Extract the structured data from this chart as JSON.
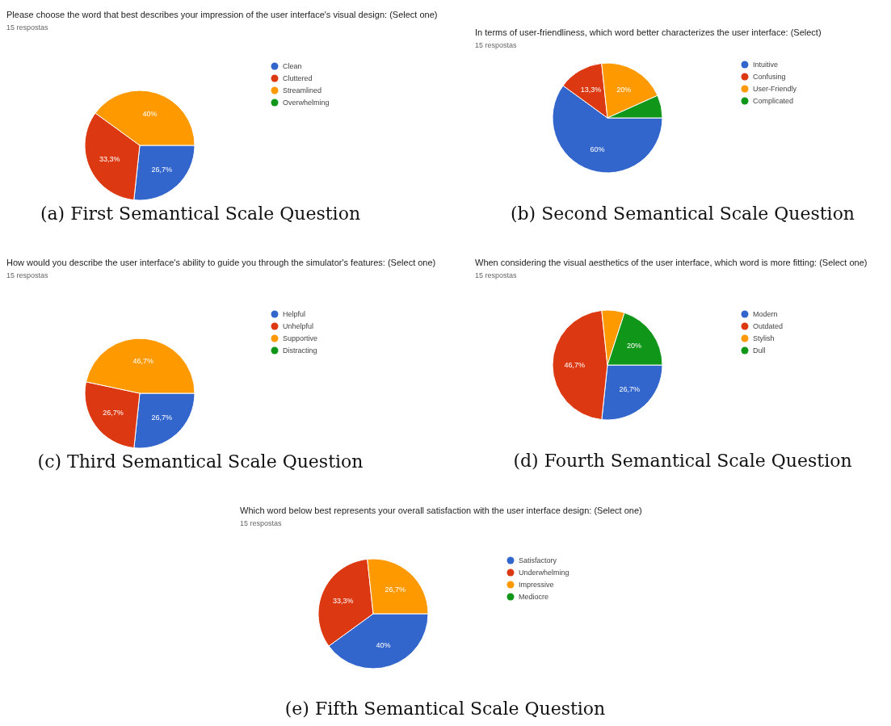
{
  "chart_data": [
    {
      "type": "pie",
      "title": "Please choose the word that best describes your impression of the user interface's visual design: (Select one)",
      "subtitle": "15 respostas",
      "categories": [
        "Clean",
        "Cluttered",
        "Streamlined",
        "Overwhelming"
      ],
      "values": [
        26.7,
        33.3,
        40,
        0
      ],
      "colors": [
        "#3366cc",
        "#dc3912",
        "#ff9900",
        "#109618"
      ],
      "value_labels": [
        "26,7%",
        "33,3%",
        "40%",
        null
      ],
      "legend": "right",
      "annotations": [
        "(a) First Semantical Scale Question"
      ]
    },
    {
      "type": "pie",
      "title": "In terms of user-friendliness, which word better characterizes the user interface: (Select)",
      "subtitle": "15 respostas",
      "categories": [
        "Intuitive",
        "Confusing",
        "User-Friendly",
        "Complicated"
      ],
      "values": [
        60,
        13.3,
        20,
        6.7
      ],
      "colors": [
        "#3366cc",
        "#dc3912",
        "#ff9900",
        "#109618"
      ],
      "value_labels": [
        "60%",
        "13,3%",
        "20%",
        null
      ],
      "legend": "right",
      "annotations": [
        "(b) Second Semantical Scale Question"
      ]
    },
    {
      "type": "pie",
      "title": "How would you describe the user interface's ability to guide you through the simulator's features: (Select one)",
      "subtitle": "15 respostas",
      "categories": [
        "Helpful",
        "Unhelpful",
        "Supportive",
        "Distracting"
      ],
      "values": [
        26.7,
        26.7,
        46.7,
        0
      ],
      "colors": [
        "#3366cc",
        "#dc3912",
        "#ff9900",
        "#109618"
      ],
      "value_labels": [
        "26,7%",
        "26,7%",
        "46,7%",
        null
      ],
      "legend": "right",
      "annotations": [
        "(c) Third Semantical Scale Question"
      ]
    },
    {
      "type": "pie",
      "title": "When considering the visual aesthetics of the user interface, which word is more fitting: (Select one)",
      "subtitle": "15 respostas",
      "categories": [
        "Modern",
        "Outdated",
        "Stylish",
        "Dull"
      ],
      "values": [
        26.7,
        46.7,
        6.7,
        20
      ],
      "colors": [
        "#3366cc",
        "#dc3912",
        "#ff9900",
        "#109618"
      ],
      "value_labels": [
        "26,7%",
        "46,7%",
        null,
        "20%"
      ],
      "legend": "right",
      "annotations": [
        "(d) Fourth Semantical Scale Question"
      ]
    },
    {
      "type": "pie",
      "title": "Which word below best represents your overall satisfaction with the user interface design: (Select one)",
      "subtitle": "15 respostas",
      "categories": [
        "Satisfactory",
        "Underwhelming",
        "Impressive",
        "Mediocre"
      ],
      "values": [
        40,
        33.3,
        26.7,
        0
      ],
      "colors": [
        "#3366cc",
        "#dc3912",
        "#ff9900",
        "#109618"
      ],
      "value_labels": [
        "40%",
        "33,3%",
        "26,7%",
        null
      ],
      "legend": "right",
      "annotations": [
        "(e) Fifth Semantical Scale Question"
      ]
    }
  ]
}
